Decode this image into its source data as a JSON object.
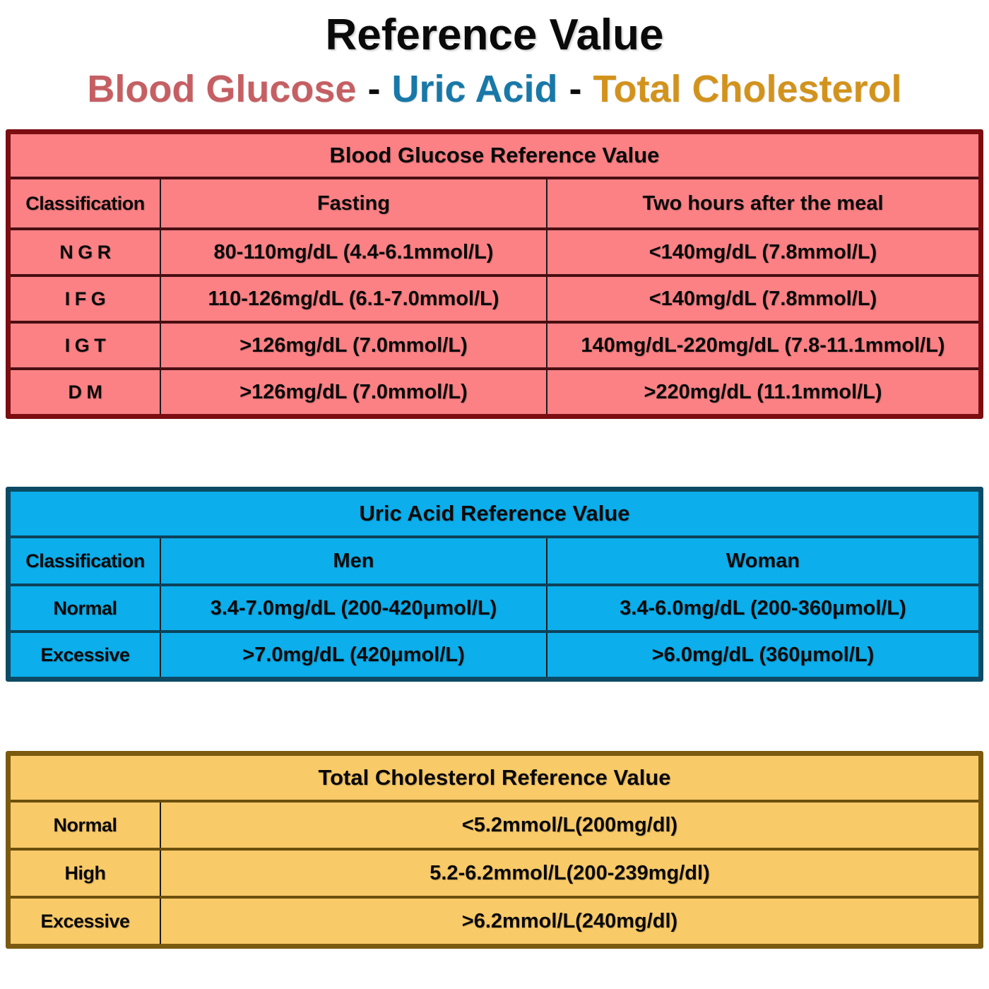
{
  "page": {
    "title": "Reference Value",
    "subtitle": {
      "parts": [
        {
          "text": "Blood Glucose",
          "color": "#c55f63"
        },
        {
          "text": "Uric Acid",
          "color": "#1878a8"
        },
        {
          "text": "Total Cholesterol",
          "color": "#d2931d"
        }
      ],
      "separator": "-"
    }
  },
  "chart_data": [
    {
      "type": "table",
      "title": "Blood Glucose Reference Value",
      "theme": {
        "fill": "#fb8185",
        "border": "#7c0d10",
        "divider": "#470e12",
        "grid": "#1b1b1b"
      },
      "columns": [
        "Classification",
        "Fasting",
        "Two hours after the meal"
      ],
      "rows": [
        [
          "N G R",
          "80-110mg/dL (4.4-6.1mmol/L)",
          "<140mg/dL (7.8mmol/L)"
        ],
        [
          "I F G",
          "110-126mg/dL (6.1-7.0mmol/L)",
          "<140mg/dL (7.8mmol/L)"
        ],
        [
          "I G T",
          ">126mg/dL (7.0mmol/L)",
          "140mg/dL-220mg/dL (7.8-11.1mmol/L)"
        ],
        [
          "D M",
          ">126mg/dL (7.0mmol/L)",
          ">220mg/dL (11.1mmol/L)"
        ]
      ]
    },
    {
      "type": "table",
      "title": "Uric Acid Reference Value",
      "theme": {
        "fill": "#0caeec",
        "border": "#0d4a63",
        "divider": "#0d4259",
        "grid": "#1b1b1b"
      },
      "columns": [
        "Classification",
        "Men",
        "Woman"
      ],
      "rows": [
        [
          "Normal",
          "3.4-7.0mg/dL (200-420μmol/L)",
          "3.4-6.0mg/dL (200-360μmol/L)"
        ],
        [
          "Excessive",
          ">7.0mg/dL (420μmol/L)",
          ">6.0mg/dL (360μmol/L)"
        ]
      ]
    },
    {
      "type": "table",
      "title": "Total Cholesterol Reference Value",
      "theme": {
        "fill": "#f9ca68",
        "border": "#7b5a10",
        "divider": "#6b4f0e",
        "grid": "#1b1b1b"
      },
      "columns": [],
      "rows": [
        [
          "Normal",
          "<5.2mmol/L(200mg/dl)"
        ],
        [
          "High",
          "5.2-6.2mmol/L(200-239mg/dl)"
        ],
        [
          "Excessive",
          ">6.2mmol/L(240mg/dl)"
        ]
      ]
    }
  ]
}
